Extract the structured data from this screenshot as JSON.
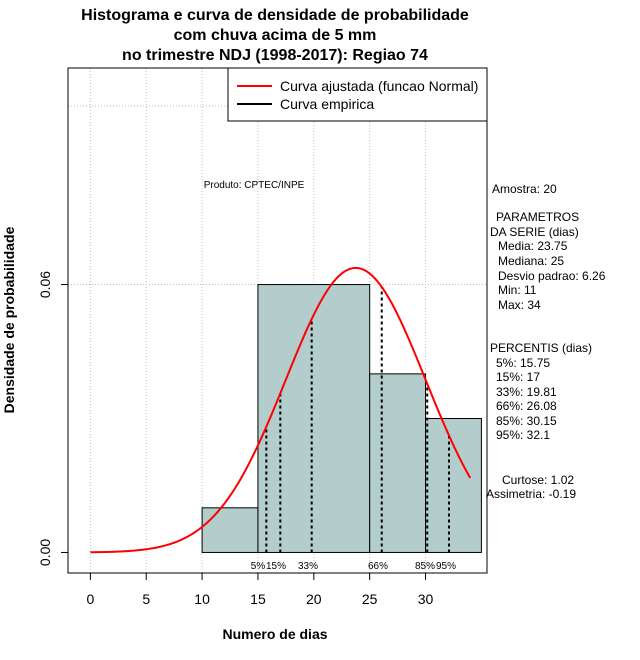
{
  "chart_data": {
    "type": "histogram",
    "title_lines": [
      "Histograma e curva de densidade de probabilidade",
      "com chuva acima de 5 mm",
      "no trimestre NDJ (1998-2017): Regiao 74"
    ],
    "xlabel": "Numero de dias",
    "ylabel": "Densidade de probabilidade",
    "xlim": [
      -2,
      35.5
    ],
    "ylim": [
      -0.0046,
      0.1085
    ],
    "x_ticks": [
      0,
      5,
      10,
      15,
      20,
      25,
      30
    ],
    "y_ticks": [
      {
        "value": 0.0,
        "label": "0.00"
      },
      {
        "value": 0.06,
        "label": "0.06"
      }
    ],
    "grid": true,
    "bars": [
      {
        "x0": 10,
        "x1": 15,
        "density": 0.01
      },
      {
        "x0": 15,
        "x1": 25,
        "density": 0.06
      },
      {
        "x0": 25,
        "x1": 30,
        "density": 0.04
      },
      {
        "x0": 30,
        "x1": 35,
        "density": 0.03
      }
    ],
    "normal_fit": {
      "mean": 23.75,
      "sd": 6.26,
      "x_from": 0,
      "x_to": 34
    },
    "percentile_lines": [
      {
        "x": 15.75,
        "label": "5%"
      },
      {
        "x": 17,
        "label": "15%"
      },
      {
        "x": 19.81,
        "label": "33%"
      },
      {
        "x": 26.08,
        "label": "66%"
      },
      {
        "x": 30.15,
        "label": "85%"
      },
      {
        "x": 32.1,
        "label": "95%"
      }
    ],
    "legend": [
      {
        "label": "Curva ajustada (funcao Normal)",
        "color": "#ff0000"
      },
      {
        "label": "Curva empirica",
        "color": "#000000"
      }
    ],
    "annotation": "Produto: CPTEC/INPE",
    "stats_lines": [
      "Amostra: 20",
      "PARAMETROS",
      "DA SERIE (dias)",
      "Media: 23.75",
      "Mediana: 25",
      "Desvio padrao: 6.26",
      "Min: 11",
      "Max: 34",
      "PERCENTIS (dias)",
      "5%: 15.75",
      "15%: 17",
      "33%: 19.81",
      "66%: 26.08",
      "85%: 30.15",
      "95%: 32.1",
      "Curtose: 1.02",
      "Assimetria: -0.19"
    ],
    "colors": {
      "bar_fill": "#b3cccc",
      "curve": "#ff0000",
      "grid": "#bebebe"
    }
  }
}
